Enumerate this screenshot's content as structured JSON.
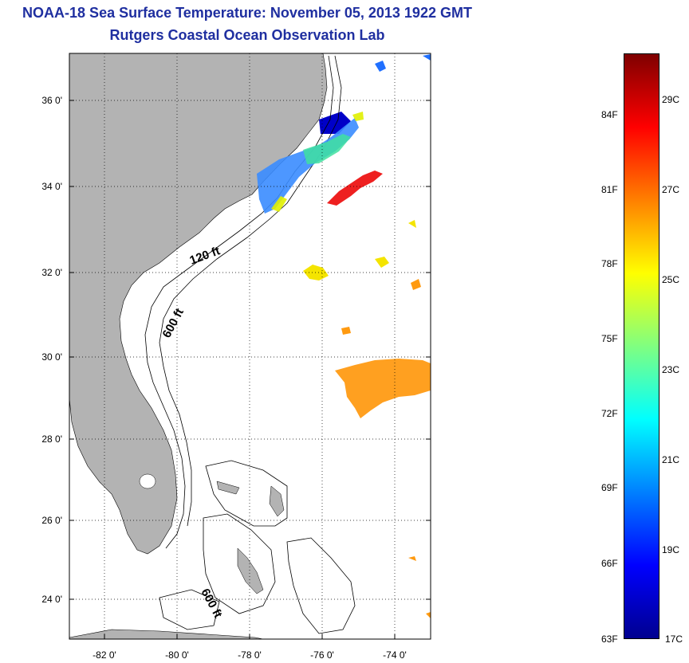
{
  "title": "NOAA-18 Sea Surface Temperature:  November 05, 2013 1922 GMT",
  "subtitle": "Rutgers Coastal Ocean Observation Lab",
  "map": {
    "lat_labels": [
      "36 0'",
      "34 0'",
      "32 0'",
      "30 0'",
      "28 0'",
      "26 0'",
      "24 0'"
    ],
    "lon_labels": [
      "-82 0'",
      "-80 0'",
      "-78 0'",
      "-76 0'",
      "-74 0'"
    ],
    "contour_labels": [
      "120 ft",
      "600 ft",
      "600 ft"
    ],
    "land_color": "#b3b3b3"
  },
  "colorbar": {
    "fahrenheit_labels": [
      "84F",
      "81F",
      "78F",
      "75F",
      "72F",
      "69F",
      "66F",
      "63F"
    ],
    "celsius_labels": [
      "29C",
      "27C",
      "25C",
      "23C",
      "21C",
      "19C",
      "17C"
    ],
    "colors": [
      "#7f0000",
      "#ff0000",
      "#ff8000",
      "#ffff00",
      "#80ff80",
      "#00ffff",
      "#0080ff",
      "#0000ff",
      "#00008f"
    ]
  }
}
